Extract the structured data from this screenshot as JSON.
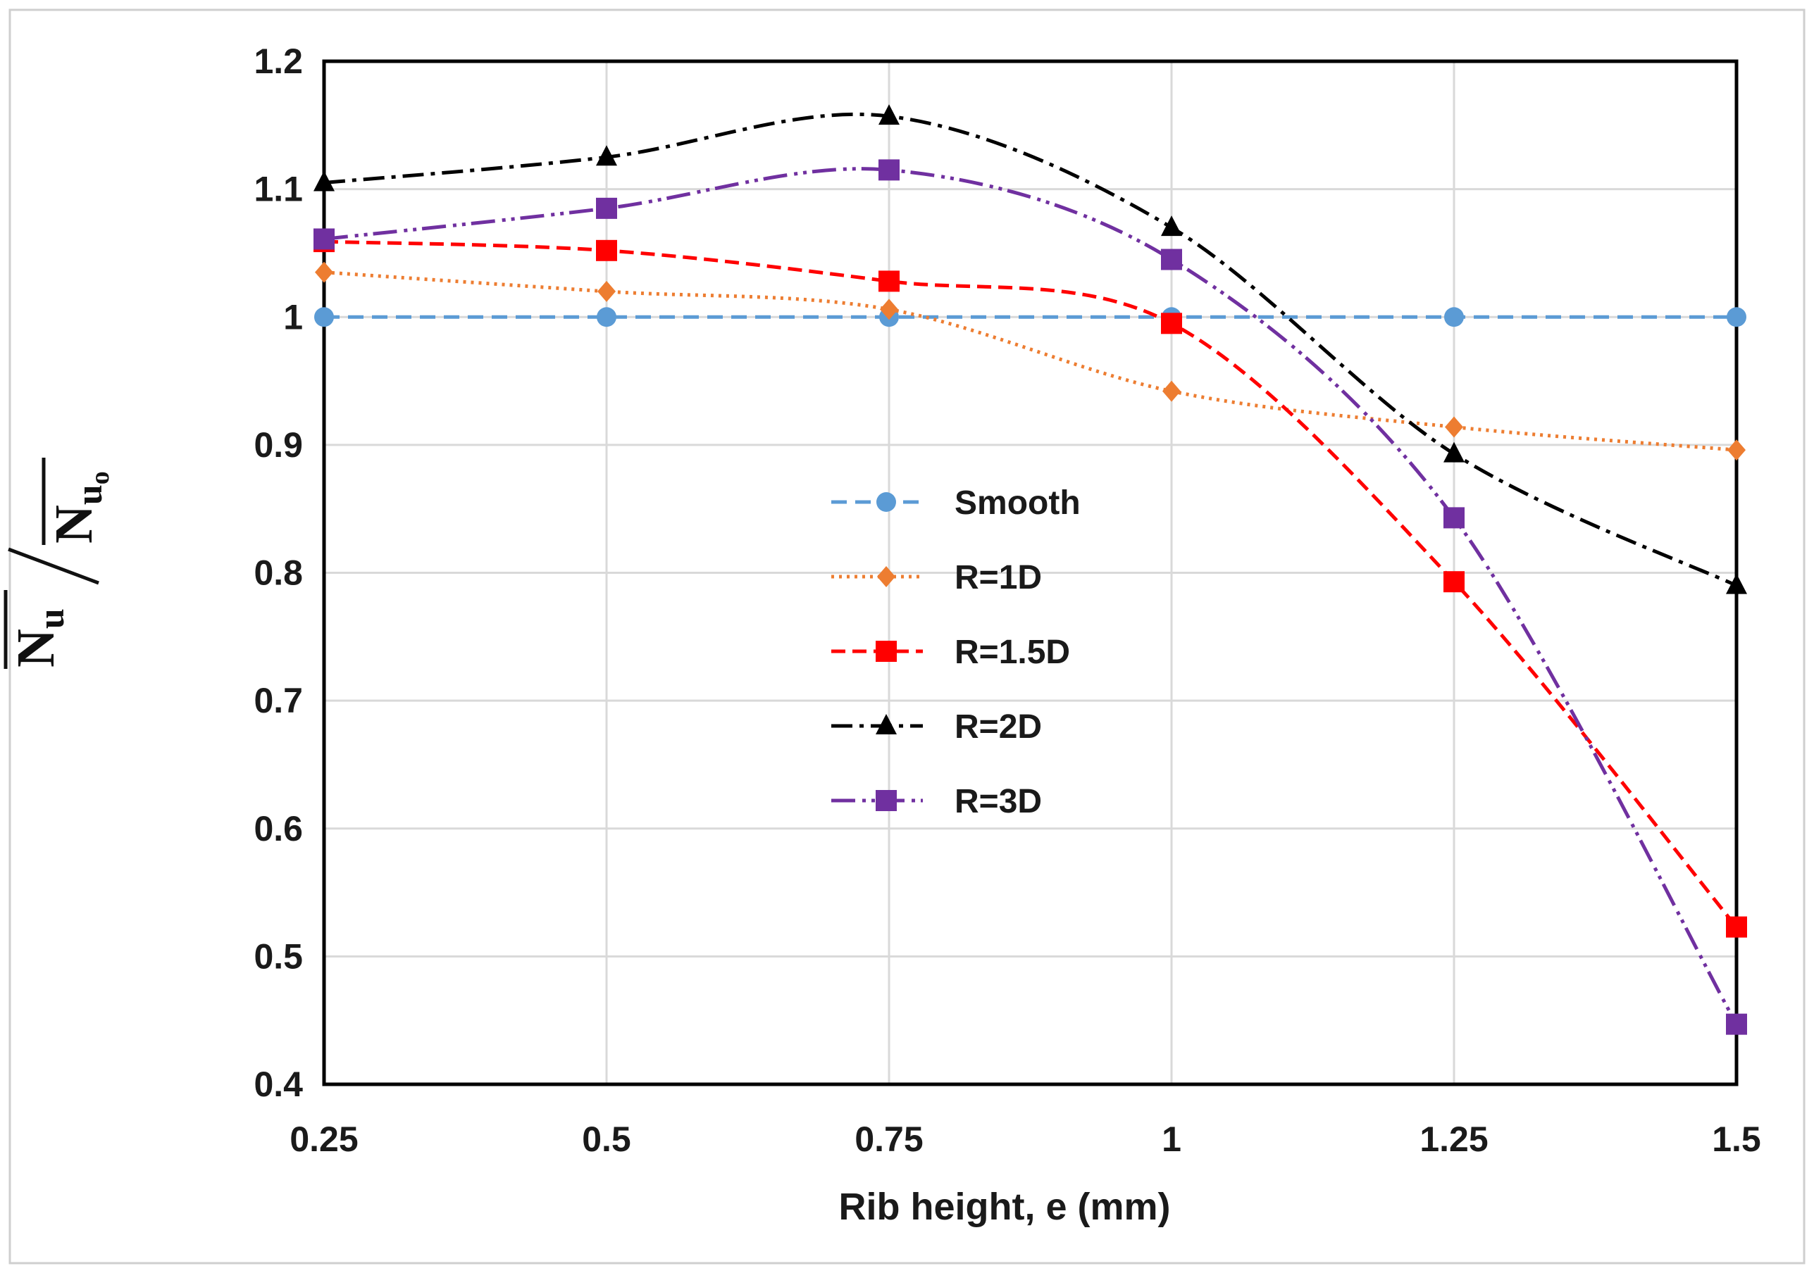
{
  "chart_data": {
    "type": "line",
    "title": "",
    "xlabel": "Rib height, e (mm)",
    "ylabel": {
      "num_main": "N",
      "num_sub": "u",
      "den_main": "N",
      "den_sub": "u",
      "den_subsub": "o"
    },
    "x": [
      0.25,
      0.5,
      0.75,
      1,
      1.25,
      1.5
    ],
    "x_tick_labels": [
      "0.25",
      "0.5",
      "0.75",
      "1",
      "1.25",
      "1.5"
    ],
    "y_ticks": [
      0.4,
      0.5,
      0.6,
      0.7,
      0.8,
      0.9,
      1.0,
      1.1,
      1.2
    ],
    "y_tick_labels": [
      "0.4",
      "0.5",
      "0.6",
      "0.7",
      "0.8",
      "0.9",
      "1",
      "1.1",
      "1.2"
    ],
    "xlim": [
      0.25,
      1.5
    ],
    "ylim": [
      0.4,
      1.2
    ],
    "grid": true,
    "legend_position": "center",
    "series": [
      {
        "name": "Smooth",
        "values": [
          1.0,
          1.0,
          1.0,
          1.0,
          1.0,
          1.0
        ],
        "color": "#5b9bd5",
        "marker": "circle",
        "dash": "22,12",
        "smooth": false
      },
      {
        "name": "R=1D",
        "values": [
          1.035,
          1.02,
          1.006,
          0.942,
          0.914,
          0.896
        ],
        "color": "#ed7d31",
        "marker": "diamond",
        "dash": "4,7",
        "smooth": true
      },
      {
        "name": "R=1.5D",
        "values": [
          1.059,
          1.052,
          1.028,
          0.995,
          0.793,
          0.523
        ],
        "color": "#ff0000",
        "marker": "square",
        "dash": "20,10",
        "smooth": true
      },
      {
        "name": "R=2D",
        "values": [
          1.105,
          1.125,
          1.157,
          1.07,
          0.893,
          0.79
        ],
        "color": "#000000",
        "marker": "triangle",
        "dash": "30,10,6,10",
        "smooth": true
      },
      {
        "name": "R=3D",
        "values": [
          1.061,
          1.085,
          1.115,
          1.045,
          0.843,
          0.447
        ],
        "color": "#7030a0",
        "marker": "square",
        "dash": "34,10,5,8,5,8",
        "smooth": true
      }
    ]
  }
}
